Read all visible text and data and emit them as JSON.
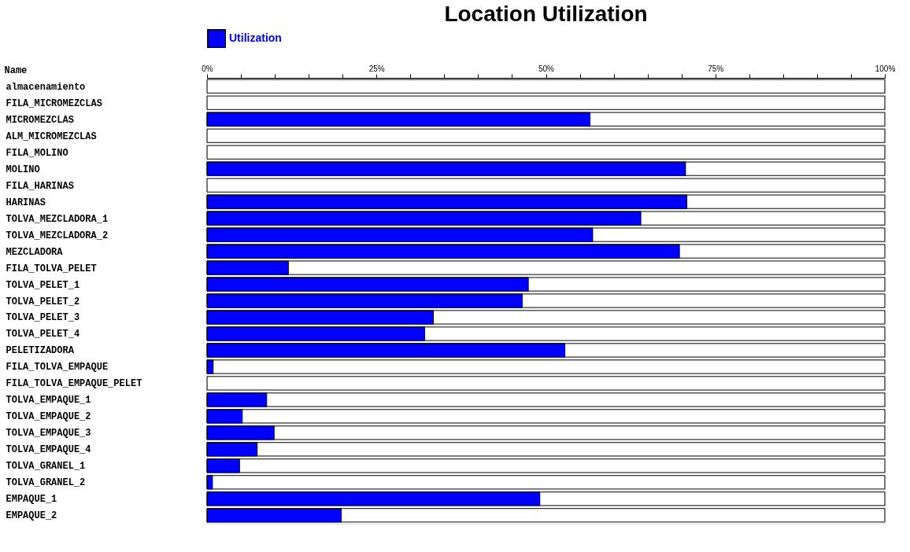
{
  "chart_data": {
    "type": "bar",
    "orientation": "horizontal",
    "title": "Location Utilization",
    "ylabel": "Name",
    "categories": [
      "almacenamiento",
      "FILA_MICROMEZCLAS",
      "MICROMEZCLAS",
      "ALM_MICROMEZCLAS",
      "FILA_MOLINO",
      "MOLINO",
      "FILA_HARINAS",
      "HARINAS",
      "TOLVA_MEZCLADORA_1",
      "TOLVA_MEZCLADORA_2",
      "MEZCLADORA",
      "FILA_TOLVA_PELET",
      "TOLVA_PELET_1",
      "TOLVA_PELET_2",
      "TOLVA_PELET_3",
      "TOLVA_PELET_4",
      "PELETIZADORA",
      "FILA_TOLVA_EMPAQUE",
      "FILA_TOLVA_EMPAQUE_PELET",
      "TOLVA_EMPAQUE_1",
      "TOLVA_EMPAQUE_2",
      "TOLVA_EMPAQUE_3",
      "TOLVA_EMPAQUE_4",
      "TOLVA_GRANEL_1",
      "TOLVA_GRANEL_2",
      "EMPAQUE_1",
      "EMPAQUE_2"
    ],
    "series": [
      {
        "name": "Utilization",
        "color": "#0000ff",
        "values": [
          0,
          0,
          56.5,
          0,
          0,
          70.6,
          0,
          70.8,
          64.0,
          56.9,
          69.7,
          12.0,
          47.4,
          46.5,
          33.4,
          32.1,
          52.8,
          0.9,
          0,
          8.8,
          5.2,
          9.9,
          7.4,
          4.8,
          0.8,
          49.1,
          19.8
        ]
      }
    ],
    "xlim": [
      0,
      100
    ],
    "xticks": [
      {
        "value": 0,
        "label": "0%"
      },
      {
        "value": 5,
        "label": null
      },
      {
        "value": 10,
        "label": null
      },
      {
        "value": 15,
        "label": null
      },
      {
        "value": 20,
        "label": null
      },
      {
        "value": 25,
        "label": "25%"
      },
      {
        "value": 30,
        "label": null
      },
      {
        "value": 35,
        "label": null
      },
      {
        "value": 40,
        "label": null
      },
      {
        "value": 45,
        "label": null
      },
      {
        "value": 50,
        "label": "50%"
      },
      {
        "value": 55,
        "label": null
      },
      {
        "value": 60,
        "label": null
      },
      {
        "value": 65,
        "label": null
      },
      {
        "value": 70,
        "label": null
      },
      {
        "value": 75,
        "label": "75%"
      },
      {
        "value": 80,
        "label": null
      },
      {
        "value": 85,
        "label": null
      },
      {
        "value": 90,
        "label": null
      },
      {
        "value": 95,
        "label": null
      },
      {
        "value": 100,
        "label": "100%"
      }
    ],
    "legend": "top",
    "grid": false
  }
}
